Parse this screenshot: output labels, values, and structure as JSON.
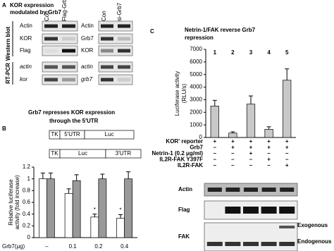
{
  "panel_a": {
    "label": "A",
    "title": [
      "KOR expression",
      "modulated by Grb7"
    ],
    "side_labels": [
      "Western blot",
      "RT-PCR"
    ],
    "left": {
      "columns": [
        "Con",
        "Flag-Grb7"
      ],
      "rows": [
        "Actin",
        "KOR",
        "Flag",
        "actin",
        "kor"
      ]
    },
    "right": {
      "columns": [
        "Con",
        "si-Grb7"
      ],
      "rows": [
        "Actin",
        "Grb7",
        "KOR",
        "actin",
        "grb7"
      ]
    }
  },
  "panel_b": {
    "label": "B",
    "constructs": [
      [
        "TK",
        "5'UTR",
        "Luc"
      ],
      [
        "TK",
        "Luc",
        "3'UTR"
      ]
    ]
  },
  "panel_c": {
    "label": "C",
    "conditions": [
      {
        "label": "KOR' reporter",
        "signs": [
          "+",
          "+",
          "+",
          "+",
          "+"
        ]
      },
      {
        "label": "Grb7",
        "signs": [
          "–",
          "+",
          "+",
          "+",
          "+"
        ]
      },
      {
        "label": "Netrin-1 (0.2 μg/ml)",
        "signs": [
          "–",
          "–",
          "+",
          "–",
          "–"
        ]
      },
      {
        "label": "IL2R-FAK Y397F",
        "signs": [
          "–",
          "–",
          "–",
          "+",
          "–"
        ]
      },
      {
        "label": "IL2R-FAK",
        "signs": [
          "–",
          "–",
          "–",
          "–",
          "+"
        ]
      }
    ],
    "blots": [
      "Actin",
      "Flag",
      "FAK"
    ],
    "bands": [
      "Exogenous",
      "Endogenous"
    ]
  },
  "chart_data": [
    {
      "type": "bar",
      "title": [
        "Grb7 represses KOR expression",
        "through the 5'UTR"
      ],
      "x_label": "Grb7(μg)",
      "y_label": [
        "Relative luciferase",
        "activity (fold increase)"
      ],
      "categories": [
        "–",
        "0.1",
        "0.2",
        "0.4"
      ],
      "series": [
        {
          "color": "#ffffff",
          "values": [
            1,
            0.75,
            0.35,
            0.33
          ],
          "errors": [
            0.1,
            0.08,
            0.05,
            0.06
          ],
          "annotations": [
            null,
            null,
            "*",
            "*"
          ]
        },
        {
          "color": "#999999",
          "values": [
            1,
            0.97,
            1,
            1
          ],
          "errors": [
            0.1,
            0.1,
            0.08,
            0.12
          ]
        }
      ],
      "ylim": [
        0,
        1.2
      ],
      "yticks": [
        0,
        0.2,
        0.4,
        0.6,
        0.8,
        1,
        1.2
      ]
    },
    {
      "type": "bar",
      "title": [
        "Netrin-1/FAK reverse Grb7",
        "repression"
      ],
      "y_label": [
        "Luciferase activity",
        "(RLU/s)"
      ],
      "categories": [
        "1",
        "2",
        "3",
        "4",
        "5"
      ],
      "series": [
        {
          "color": "#c8c8c8",
          "values": [
            2500,
            350,
            2650,
            650,
            4550
          ],
          "errors": [
            450,
            100,
            650,
            200,
            900
          ]
        }
      ],
      "ylim": [
        0,
        7000
      ],
      "yticks": [
        0,
        1000,
        2000,
        3000,
        4000,
        5000,
        6000,
        7000
      ]
    }
  ]
}
